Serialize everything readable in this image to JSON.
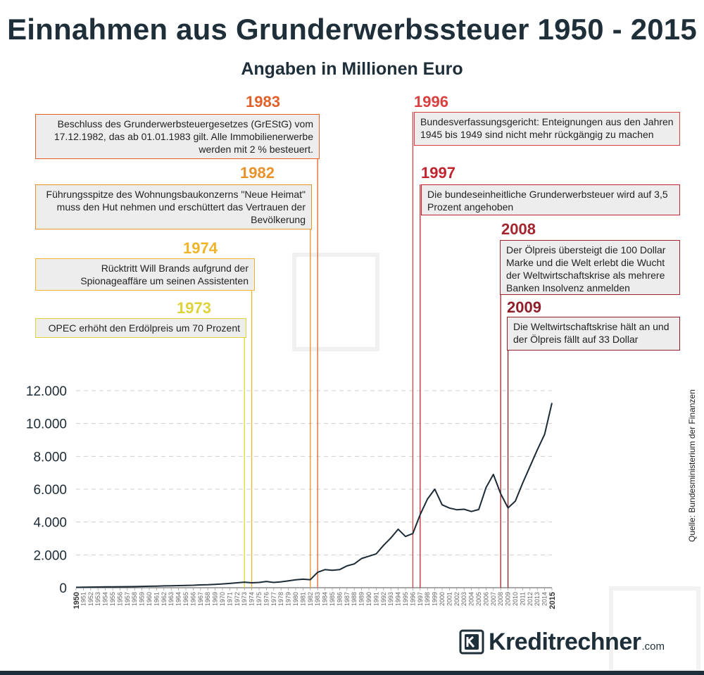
{
  "header": {
    "title": "Einnahmen aus Grunderwerbssteuer 1950 - 2015",
    "subtitle": "Angaben in Millionen Euro"
  },
  "source": "Quelle: Bundesministerium der Finanzen",
  "logo": {
    "name": "Kreditrechner",
    "suffix": ".com"
  },
  "colors": {
    "line": "#1d2b36",
    "grid": "#cfcfcf",
    "e1973": "#ded33b",
    "e1974": "#f0b429",
    "e1982": "#e9922b",
    "e1983": "#e2612a",
    "e1996": "#d94040",
    "e1997": "#c0252f",
    "e2008": "#a3252d",
    "e2009": "#8f1f2a"
  },
  "events": [
    {
      "id": "e1983",
      "year": "1983",
      "text": "Beschluss des Grunderwerbsteuergesetzes (GrEStG) vom 17.12.1982, das ab 01.01.1983 gilt. Alle Immobilienerwerbe werden mit 2 % besteuert."
    },
    {
      "id": "e1982",
      "year": "1982",
      "text": "Führungsspitze des Wohnungsbaukonzerns \"Neue Heimat\" muss den Hut nehmen und erschüttert das Vertrauen der Bevölkerung"
    },
    {
      "id": "e1974",
      "year": "1974",
      "text": "Rücktritt Will Brands aufgrund der Spionageaffäre um seinen Assistenten"
    },
    {
      "id": "e1973",
      "year": "1973",
      "text": "OPEC erhöht den Erdölpreis um 70 Prozent"
    },
    {
      "id": "e1996",
      "year": "1996",
      "text": "Bundesverfassungsgericht: Enteignungen aus den Jahren 1945 bis 1949 sind nicht mehr rückgängig zu machen"
    },
    {
      "id": "e1997",
      "year": "1997",
      "text": "Die bundeseinheitliche Grunderwerbsteuer wird auf 3,5 Prozent angehoben"
    },
    {
      "id": "e2008",
      "year": "2008",
      "text": "Der Ölpreis übersteigt die 100 Dollar Marke und die Welt erlebt die Wucht der Weltwirtschaftskrise als mehrere Banken Insolvenz anmelden"
    },
    {
      "id": "e2009",
      "year": "2009",
      "text": "Die Weltwirtschaftskrise hält an und der Ölpreis fällt auf 33 Dollar"
    }
  ],
  "chart_data": {
    "type": "line",
    "title": "Einnahmen aus Grunderwerbssteuer 1950 - 2015",
    "subtitle": "Angaben in Millionen Euro",
    "xlabel": "",
    "ylabel": "",
    "ylim": [
      0,
      12000
    ],
    "yticks": [
      0,
      2000,
      4000,
      6000,
      8000,
      10000,
      12000
    ],
    "ytick_labels": [
      "0",
      "2.000",
      "4.000",
      "6.000",
      "8.000",
      "10.000",
      "12.000"
    ],
    "grid": true,
    "x": [
      1950,
      1951,
      1952,
      1953,
      1954,
      1955,
      1956,
      1957,
      1958,
      1959,
      1960,
      1961,
      1962,
      1963,
      1964,
      1965,
      1966,
      1967,
      1968,
      1969,
      1970,
      1971,
      1972,
      1973,
      1974,
      1975,
      1976,
      1977,
      1978,
      1979,
      1980,
      1981,
      1982,
      1983,
      1984,
      1985,
      1986,
      1987,
      1988,
      1989,
      1990,
      1991,
      1992,
      1993,
      1994,
      1995,
      1996,
      1997,
      1998,
      1999,
      2000,
      2001,
      2002,
      2003,
      2004,
      2005,
      2006,
      2007,
      2008,
      2009,
      2010,
      2011,
      2012,
      2013,
      2014,
      2015
    ],
    "series": [
      {
        "name": "Einnahmen aus Grunderwerbssteuer",
        "values": [
          20,
          30,
          40,
          45,
          50,
          55,
          60,
          65,
          70,
          80,
          90,
          100,
          110,
          120,
          130,
          140,
          150,
          170,
          180,
          200,
          230,
          260,
          300,
          340,
          300,
          320,
          380,
          320,
          360,
          420,
          480,
          520,
          490,
          940,
          1100,
          1060,
          1100,
          1330,
          1450,
          1780,
          1920,
          2060,
          2580,
          3030,
          3560,
          3120,
          3300,
          4450,
          5400,
          6000,
          5050,
          4850,
          4750,
          4780,
          4640,
          4760,
          6100,
          6900,
          5720,
          4860,
          5270,
          6370,
          7380,
          8390,
          9340,
          11250
        ]
      }
    ]
  }
}
